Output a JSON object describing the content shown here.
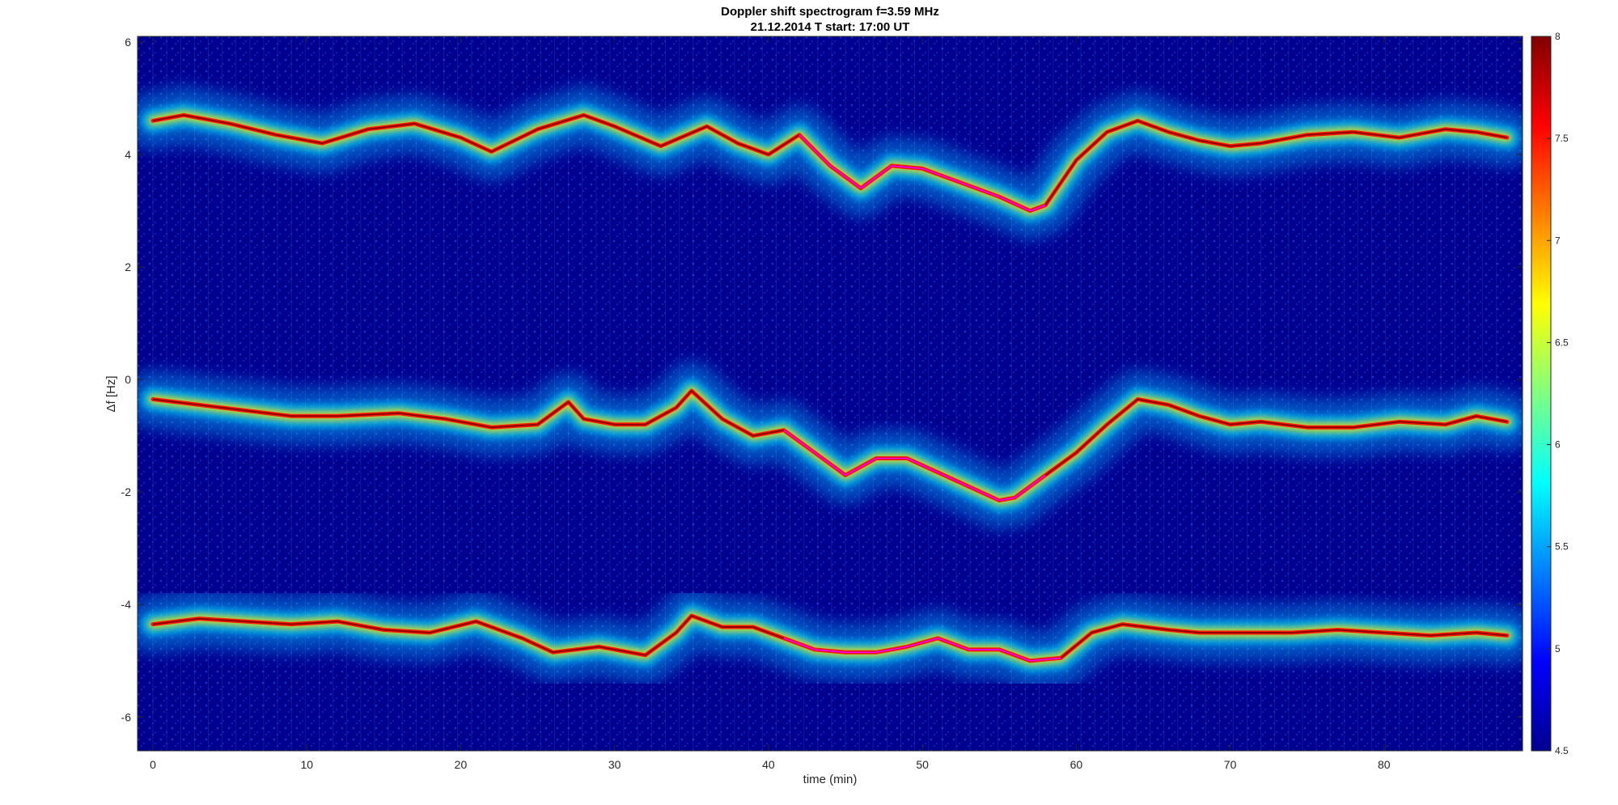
{
  "chart_data": {
    "type": "heatmap",
    "title_line1": "Doppler shift spectrogram f=3.59 MHz",
    "title_line2": "21.12.2014   T start: 17:00 UT",
    "xlabel": "time (min)",
    "ylabel": "Δf [Hz]",
    "xlim": [
      -1,
      89
    ],
    "ylim": [
      -6.6,
      6.1
    ],
    "x_ticks": [
      0,
      10,
      20,
      30,
      40,
      50,
      60,
      70,
      80
    ],
    "x_tick_labels": [
      "0",
      "10",
      "20",
      "30",
      "40",
      "50",
      "60",
      "70",
      "80"
    ],
    "y_ticks": [
      -6,
      -4,
      -2,
      0,
      2,
      4,
      6
    ],
    "y_tick_labels": [
      "-6",
      "-4",
      "-2",
      "0",
      "2",
      "4",
      "6"
    ],
    "colorbar": {
      "min": 4.5,
      "max": 8,
      "ticks": [
        4.5,
        5,
        5.5,
        6,
        6.5,
        7,
        7.5,
        8
      ],
      "tick_labels": [
        "4.5",
        "5",
        "5.5",
        "6",
        "6.5",
        "7",
        "7.5",
        "8"
      ],
      "colormap": "jet"
    },
    "colors": {
      "background": "#00008f",
      "trace_line": "#ff00ff",
      "peak": "#8f0000"
    },
    "traces": [
      {
        "x": [
          0,
          2,
          5,
          8,
          11,
          14,
          17,
          20,
          22,
          25,
          28,
          30,
          33,
          36,
          38,
          40,
          42,
          44,
          46,
          48,
          50,
          52,
          55,
          57,
          58,
          60,
          62,
          64,
          66,
          68,
          70,
          72,
          75,
          78,
          81,
          84,
          86,
          88
        ],
        "y": [
          4.6,
          4.7,
          4.55,
          4.35,
          4.2,
          4.45,
          4.55,
          4.3,
          4.05,
          4.45,
          4.7,
          4.5,
          4.15,
          4.5,
          4.2,
          4.0,
          4.35,
          3.8,
          3.4,
          3.8,
          3.75,
          3.55,
          3.25,
          3.0,
          3.1,
          3.9,
          4.4,
          4.6,
          4.4,
          4.25,
          4.15,
          4.2,
          4.35,
          4.4,
          4.3,
          4.45,
          4.4,
          4.3
        ]
      },
      {
        "x": [
          0,
          3,
          6,
          9,
          12,
          16,
          19,
          22,
          25,
          27,
          28,
          30,
          32,
          34,
          35,
          37,
          39,
          41,
          43,
          45,
          47,
          49,
          51,
          53,
          55,
          56,
          58,
          60,
          62,
          64,
          66,
          68,
          70,
          72,
          75,
          78,
          81,
          84,
          86,
          88
        ],
        "y": [
          -0.35,
          -0.45,
          -0.55,
          -0.65,
          -0.65,
          -0.6,
          -0.7,
          -0.85,
          -0.8,
          -0.4,
          -0.7,
          -0.8,
          -0.8,
          -0.5,
          -0.2,
          -0.7,
          -1.0,
          -0.9,
          -1.3,
          -1.7,
          -1.4,
          -1.4,
          -1.65,
          -1.9,
          -2.15,
          -2.1,
          -1.7,
          -1.3,
          -0.8,
          -0.35,
          -0.45,
          -0.65,
          -0.8,
          -0.75,
          -0.85,
          -0.85,
          -0.75,
          -0.8,
          -0.65,
          -0.75
        ]
      },
      {
        "x": [
          0,
          3,
          6,
          9,
          12,
          15,
          18,
          21,
          24,
          26,
          29,
          32,
          34,
          35,
          37,
          39,
          41,
          43,
          45,
          47,
          49,
          51,
          53,
          55,
          57,
          59,
          61,
          63,
          66,
          68,
          71,
          74,
          77,
          80,
          83,
          86,
          88
        ],
        "y": [
          -4.35,
          -4.25,
          -4.3,
          -4.35,
          -4.3,
          -4.45,
          -4.5,
          -4.3,
          -4.6,
          -4.85,
          -4.75,
          -4.9,
          -4.5,
          -4.2,
          -4.4,
          -4.4,
          -4.6,
          -4.8,
          -4.85,
          -4.85,
          -4.75,
          -4.6,
          -4.8,
          -4.8,
          -5.0,
          -4.95,
          -4.5,
          -4.35,
          -4.45,
          -4.5,
          -4.5,
          -4.5,
          -4.45,
          -4.5,
          -4.55,
          -4.5,
          -4.55
        ]
      }
    ],
    "magenta_segment_x_range": [
      41,
      59
    ]
  }
}
